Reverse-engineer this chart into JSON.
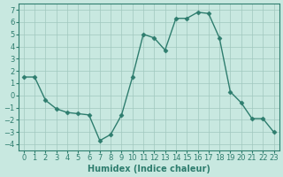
{
  "x": [
    0,
    1,
    2,
    3,
    4,
    5,
    6,
    7,
    8,
    9,
    10,
    11,
    12,
    13,
    14,
    15,
    16,
    17,
    18,
    19,
    20,
    21,
    22,
    23
  ],
  "y": [
    1.5,
    1.5,
    -0.4,
    -1.1,
    -1.4,
    -1.5,
    -1.6,
    -3.7,
    -3.2,
    -1.6,
    1.5,
    5.0,
    4.7,
    3.7,
    6.3,
    6.3,
    6.8,
    6.7,
    4.7,
    0.3,
    -0.6,
    -1.9,
    -1.9,
    -3.0
  ],
  "line_color": "#2e7d6e",
  "marker": "D",
  "marker_size": 2.5,
  "bg_color": "#c8e8e0",
  "grid_color": "#a0c8be",
  "xlabel": "Humidex (Indice chaleur)",
  "xlim": [
    -0.5,
    23.5
  ],
  "ylim": [
    -4.5,
    7.5
  ],
  "yticks": [
    -4,
    -3,
    -2,
    -1,
    0,
    1,
    2,
    3,
    4,
    5,
    6,
    7
  ],
  "xticks": [
    0,
    1,
    2,
    3,
    4,
    5,
    6,
    7,
    8,
    9,
    10,
    11,
    12,
    13,
    14,
    15,
    16,
    17,
    18,
    19,
    20,
    21,
    22,
    23
  ],
  "xlabel_fontsize": 7,
  "tick_fontsize": 6
}
